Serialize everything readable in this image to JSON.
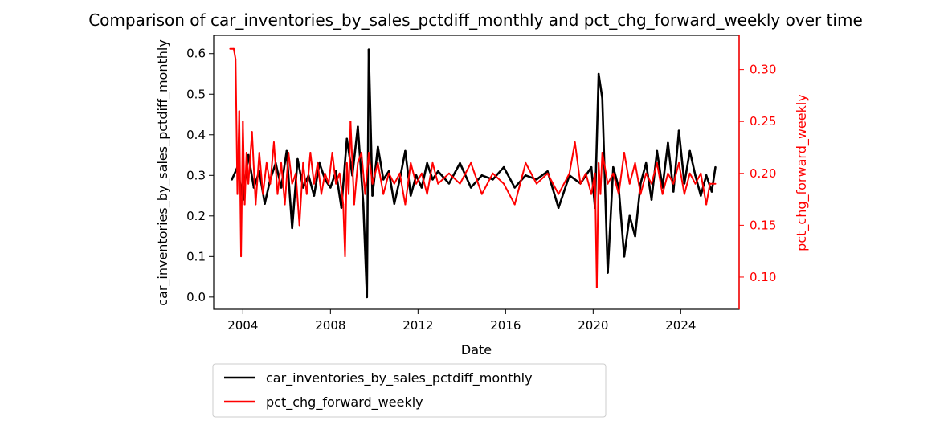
{
  "chart_data": {
    "type": "line",
    "title": "Comparison of car_inventories_by_sales_pctdiff_monthly and pct_chg_forward_weekly over time",
    "xlabel": "Date",
    "ylabel_left": "car_inventories_by_sales_pctdiff_monthly",
    "ylabel_right": "pct_chg_forward_weekly",
    "x_ticks": [
      "2004",
      "2008",
      "2012",
      "2016",
      "2020",
      "2024"
    ],
    "x_range": [
      "2002-09",
      "2026-09"
    ],
    "y_left_ticks": [
      "0.0",
      "0.1",
      "0.2",
      "0.3",
      "0.4",
      "0.5",
      "0.6"
    ],
    "y_left_range": [
      -0.03,
      0.645
    ],
    "y_right_ticks": [
      "0.10",
      "0.15",
      "0.20",
      "0.25",
      "0.30"
    ],
    "y_right_range": [
      0.069,
      0.333
    ],
    "grid": false,
    "legend": {
      "placement": "below",
      "entries": [
        "car_inventories_by_sales_pctdiff_monthly",
        "pct_chg_forward_weekly"
      ]
    },
    "series": [
      {
        "name": "car_inventories_by_sales_pctdiff_monthly",
        "axis": "left",
        "color": "#000000",
        "x": [
          "2003-07",
          "2003-10",
          "2004-01",
          "2004-04",
          "2004-07",
          "2004-10",
          "2005-01",
          "2005-04",
          "2005-07",
          "2005-10",
          "2006-01",
          "2006-04",
          "2006-07",
          "2006-10",
          "2007-01",
          "2007-04",
          "2007-07",
          "2007-10",
          "2008-01",
          "2008-04",
          "2008-07",
          "2008-10",
          "2009-01",
          "2009-04",
          "2009-07",
          "2009-09",
          "2009-10",
          "2009-12",
          "2010-03",
          "2010-06",
          "2010-09",
          "2010-12",
          "2011-03",
          "2011-06",
          "2011-09",
          "2011-12",
          "2012-03",
          "2012-06",
          "2012-09",
          "2012-12",
          "2013-06",
          "2013-12",
          "2014-06",
          "2014-12",
          "2015-06",
          "2015-12",
          "2016-06",
          "2016-12",
          "2017-06",
          "2017-12",
          "2018-06",
          "2018-12",
          "2019-06",
          "2019-12",
          "2020-02",
          "2020-04",
          "2020-06",
          "2020-09",
          "2020-12",
          "2021-03",
          "2021-06",
          "2021-09",
          "2021-12",
          "2022-03",
          "2022-06",
          "2022-09",
          "2022-12",
          "2023-03",
          "2023-06",
          "2023-09",
          "2023-12",
          "2024-03",
          "2024-06",
          "2024-09",
          "2024-12",
          "2025-03",
          "2025-06",
          "2025-08"
        ],
        "values": [
          0.29,
          0.32,
          0.24,
          0.35,
          0.27,
          0.31,
          0.23,
          0.29,
          0.33,
          0.27,
          0.36,
          0.17,
          0.34,
          0.27,
          0.3,
          0.25,
          0.33,
          0.29,
          0.27,
          0.31,
          0.22,
          0.39,
          0.3,
          0.42,
          0.23,
          0.0,
          0.61,
          0.25,
          0.37,
          0.29,
          0.31,
          0.23,
          0.29,
          0.36,
          0.25,
          0.3,
          0.27,
          0.33,
          0.29,
          0.31,
          0.28,
          0.33,
          0.27,
          0.3,
          0.29,
          0.32,
          0.27,
          0.3,
          0.29,
          0.31,
          0.22,
          0.3,
          0.28,
          0.32,
          0.22,
          0.55,
          0.49,
          0.06,
          0.32,
          0.27,
          0.1,
          0.2,
          0.15,
          0.28,
          0.33,
          0.24,
          0.36,
          0.27,
          0.38,
          0.26,
          0.41,
          0.28,
          0.36,
          0.3,
          0.25,
          0.3,
          0.26,
          0.32
        ]
      },
      {
        "name": "pct_chg_forward_weekly",
        "axis": "right",
        "color": "#ff0000",
        "x": [
          "2003-06",
          "2003-08",
          "2003-09",
          "2003-10",
          "2003-11",
          "2003-12",
          "2004-01",
          "2004-02",
          "2004-03",
          "2004-04",
          "2004-06",
          "2004-08",
          "2004-10",
          "2004-12",
          "2005-02",
          "2005-04",
          "2005-06",
          "2005-08",
          "2005-10",
          "2005-12",
          "2006-02",
          "2006-04",
          "2006-06",
          "2006-08",
          "2006-10",
          "2006-12",
          "2007-02",
          "2007-04",
          "2007-06",
          "2007-08",
          "2007-10",
          "2007-12",
          "2008-02",
          "2008-04",
          "2008-06",
          "2008-08",
          "2008-09",
          "2008-10",
          "2008-11",
          "2008-12",
          "2009-02",
          "2009-04",
          "2009-06",
          "2009-08",
          "2009-10",
          "2009-12",
          "2010-03",
          "2010-06",
          "2010-09",
          "2010-12",
          "2011-03",
          "2011-06",
          "2011-09",
          "2011-12",
          "2012-03",
          "2012-06",
          "2012-09",
          "2012-12",
          "2013-06",
          "2013-12",
          "2014-06",
          "2014-12",
          "2015-06",
          "2015-12",
          "2016-06",
          "2016-12",
          "2017-06",
          "2017-12",
          "2018-06",
          "2018-12",
          "2019-03",
          "2019-06",
          "2019-09",
          "2019-12",
          "2020-02",
          "2020-03",
          "2020-04",
          "2020-05",
          "2020-06",
          "2020-09",
          "2020-12",
          "2021-03",
          "2021-06",
          "2021-09",
          "2021-12",
          "2022-03",
          "2022-06",
          "2022-09",
          "2022-12",
          "2023-03",
          "2023-06",
          "2023-09",
          "2023-12",
          "2024-03",
          "2024-06",
          "2024-09",
          "2024-12",
          "2025-03",
          "2025-05",
          "2025-08"
        ],
        "values": [
          0.32,
          0.32,
          0.31,
          0.18,
          0.26,
          0.12,
          0.25,
          0.17,
          0.22,
          0.19,
          0.24,
          0.17,
          0.22,
          0.18,
          0.21,
          0.19,
          0.23,
          0.18,
          0.21,
          0.17,
          0.22,
          0.19,
          0.2,
          0.15,
          0.21,
          0.18,
          0.22,
          0.19,
          0.21,
          0.18,
          0.2,
          0.19,
          0.22,
          0.19,
          0.2,
          0.17,
          0.12,
          0.21,
          0.18,
          0.25,
          0.17,
          0.21,
          0.22,
          0.18,
          0.22,
          0.19,
          0.21,
          0.18,
          0.2,
          0.19,
          0.2,
          0.17,
          0.21,
          0.19,
          0.2,
          0.18,
          0.21,
          0.19,
          0.2,
          0.19,
          0.21,
          0.18,
          0.2,
          0.19,
          0.17,
          0.21,
          0.19,
          0.2,
          0.18,
          0.2,
          0.23,
          0.19,
          0.2,
          0.18,
          0.2,
          0.09,
          0.21,
          0.18,
          0.22,
          0.19,
          0.2,
          0.18,
          0.22,
          0.19,
          0.21,
          0.18,
          0.2,
          0.19,
          0.21,
          0.18,
          0.2,
          0.19,
          0.21,
          0.18,
          0.2,
          0.19,
          0.2,
          0.17,
          0.19,
          0.19
        ]
      }
    ]
  }
}
